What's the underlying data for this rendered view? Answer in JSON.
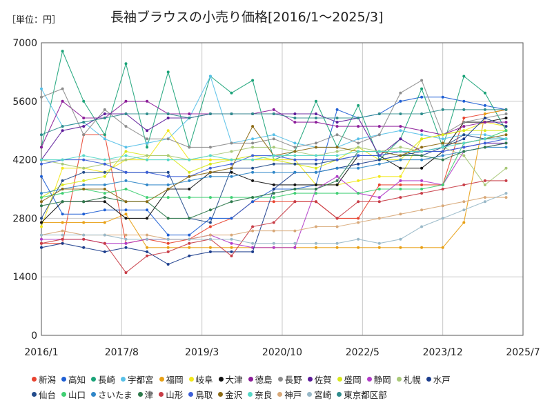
{
  "header": {
    "unit": "［単位：円］",
    "title": "長袖ブラウスの小売り価格[2016/1〜2025/3]"
  },
  "chart_data": {
    "type": "line",
    "title": "長袖ブラウスの小売り価格[2016/1〜2025/3]",
    "ylabel": "",
    "xlabel": "",
    "ylim": [
      0,
      7000
    ],
    "y_ticks": [
      0,
      1400,
      2800,
      4200,
      5600,
      7000
    ],
    "xlim": [
      "2016-01",
      "2025-07"
    ],
    "x_ticks": [
      "2016/1",
      "2017/8",
      "2019/3",
      "2020/10",
      "2022/5",
      "2023/12",
      "2025/7"
    ],
    "grid": true,
    "legend": "bottom",
    "x": [
      "2016-01",
      "2016-06",
      "2016-11",
      "2017-04",
      "2017-09",
      "2018-02",
      "2018-07",
      "2018-12",
      "2019-05",
      "2019-10",
      "2020-03",
      "2020-08",
      "2021-01",
      "2021-06",
      "2021-11",
      "2022-04",
      "2022-09",
      "2023-02",
      "2023-07",
      "2023-12",
      "2024-05",
      "2024-10",
      "2025-03"
    ],
    "series": [
      {
        "name": "新潟",
        "color": "#e8432f",
        "values": [
          2200,
          2200,
          4800,
          4800,
          2200,
          2300,
          2200,
          2300,
          2600,
          2800,
          3200,
          3200,
          3200,
          3200,
          2800,
          2800,
          3600,
          3600,
          3600,
          3600,
          5200,
          5300,
          5400
        ]
      },
      {
        "name": "高知",
        "color": "#1f5fd4",
        "values": [
          3800,
          2900,
          2900,
          3000,
          3000,
          3000,
          2400,
          2400,
          2800,
          2800,
          3200,
          3500,
          3500,
          3600,
          5400,
          5200,
          5300,
          5600,
          5700,
          5700,
          5600,
          5500,
          5400
        ]
      },
      {
        "name": "長崎",
        "color": "#1aa378",
        "values": [
          4500,
          6800,
          5600,
          4800,
          6500,
          4500,
          6300,
          4500,
          6200,
          5800,
          6100,
          4200,
          4400,
          5600,
          4500,
          5500,
          4200,
          4700,
          5900,
          4500,
          6200,
          5800,
          4900
        ]
      },
      {
        "name": "宇都宮",
        "color": "#57c0e8",
        "values": [
          5900,
          5000,
          5100,
          4700,
          4500,
          4600,
          4700,
          5200,
          6200,
          4600,
          4700,
          4800,
          4600,
          4500,
          4500,
          4700,
          4800,
          4900,
          4800,
          4700,
          4800,
          4800,
          4700
        ]
      },
      {
        "name": "福岡",
        "color": "#e8a014",
        "values": [
          2700,
          2700,
          2700,
          2700,
          2900,
          2100,
          2100,
          2100,
          2100,
          2100,
          2100,
          2100,
          2100,
          2100,
          2100,
          2100,
          2100,
          2100,
          2100,
          2100,
          2700,
          5300,
          5400
        ]
      },
      {
        "name": "岐阜",
        "color": "#f2e81a",
        "values": [
          2600,
          4000,
          4000,
          3900,
          4200,
          4200,
          4900,
          4200,
          4200,
          4200,
          4200,
          4200,
          4200,
          3600,
          3600,
          3700,
          3800,
          3800,
          4700,
          4800,
          4900,
          5100,
          5000
        ]
      },
      {
        "name": "大津",
        "color": "#111111",
        "values": [
          2700,
          3200,
          3200,
          3200,
          2800,
          2800,
          3500,
          3500,
          3900,
          3900,
          3700,
          3600,
          3600,
          3600,
          3600,
          4300,
          4300,
          4000,
          4000,
          4400,
          5100,
          5100,
          5200
        ]
      },
      {
        "name": "徳島",
        "color": "#8c1c99",
        "values": [
          4500,
          5600,
          5200,
          5200,
          5600,
          5600,
          5300,
          5300,
          5300,
          5300,
          5300,
          5400,
          5100,
          5100,
          5000,
          5000,
          5000,
          5000,
          4900,
          4800,
          5000,
          5100,
          5100
        ]
      },
      {
        "name": "長野",
        "color": "#8c8c8c",
        "values": [
          5700,
          5900,
          4800,
          5400,
          5000,
          4700,
          4700,
          4500,
          4500,
          4600,
          4600,
          4700,
          4500,
          4600,
          4800,
          4600,
          4800,
          5800,
          6100,
          4800,
          5100,
          5200,
          5300
        ]
      },
      {
        "name": "佐賀",
        "color": "#5b1a99",
        "values": [
          4200,
          4900,
          5000,
          5300,
          5300,
          4900,
          5200,
          5200,
          5300,
          5300,
          5300,
          5300,
          5300,
          5300,
          5100,
          5200,
          4300,
          4700,
          4400,
          4400,
          4500,
          4600,
          4600
        ]
      },
      {
        "name": "盛岡",
        "color": "#d8e81c",
        "values": [
          3300,
          3600,
          3700,
          3800,
          4400,
          4300,
          4300,
          3900,
          4100,
          4200,
          4300,
          4200,
          4100,
          4000,
          4200,
          4500,
          4200,
          4200,
          4700,
          4800,
          4900,
          4900,
          4900
        ]
      },
      {
        "name": "静岡",
        "color": "#b23cc8",
        "values": [
          2300,
          2300,
          2300,
          2200,
          2200,
          2300,
          2300,
          2300,
          2400,
          2200,
          2100,
          2100,
          2100,
          3500,
          3800,
          3400,
          3300,
          3700,
          3700,
          3600,
          4400,
          4500,
          4600
        ]
      },
      {
        "name": "札幌",
        "color": "#a8c878",
        "values": [
          4200,
          4100,
          4000,
          4100,
          4200,
          4300,
          4300,
          4200,
          4300,
          4400,
          4500,
          4500,
          4400,
          4300,
          4400,
          4500,
          4400,
          4500,
          4400,
          4500,
          4300,
          3600,
          4000
        ]
      },
      {
        "name": "水戸",
        "color": "#1a3c8c",
        "values": [
          2100,
          2200,
          2100,
          2000,
          2100,
          2000,
          1700,
          1900,
          2000,
          2000,
          2000,
          3500,
          3900,
          3900,
          4000,
          4100,
          4200,
          4300,
          4400,
          4500,
          4700,
          5200,
          5000
        ]
      },
      {
        "name": "仙台",
        "color": "#234c8c",
        "values": [
          2800,
          3700,
          3900,
          3900,
          3900,
          3900,
          3900,
          2800,
          2700,
          4000,
          4000,
          4100,
          4100,
          4100,
          4200,
          4300,
          4300,
          4400,
          4300,
          4500,
          4800,
          4700,
          4700
        ]
      },
      {
        "name": "山口",
        "color": "#3fcf72",
        "values": [
          3300,
          3400,
          3500,
          3400,
          3500,
          3300,
          3300,
          3300,
          3300,
          3300,
          3300,
          3300,
          3400,
          3400,
          3400,
          3400,
          3500,
          3500,
          3500,
          3600,
          4600,
          4700,
          4900
        ]
      },
      {
        "name": "さいたま",
        "color": "#2f86c8",
        "values": [
          3400,
          3500,
          3600,
          3600,
          3700,
          3600,
          3600,
          3700,
          3800,
          3800,
          3900,
          3900,
          3900,
          3900,
          4000,
          4000,
          4100,
          4200,
          4200,
          4300,
          4400,
          4500,
          4500
        ]
      },
      {
        "name": "津",
        "color": "#2e7a4c",
        "values": [
          3100,
          3200,
          3200,
          3300,
          3200,
          3200,
          2800,
          2800,
          3000,
          3200,
          3300,
          3400,
          3500,
          3500,
          3700,
          4400,
          4400,
          4300,
          4300,
          4200,
          4400,
          4500,
          4600
        ]
      },
      {
        "name": "山形",
        "color": "#c83c46",
        "values": [
          2200,
          2300,
          2300,
          2200,
          1500,
          1900,
          2000,
          2200,
          2300,
          1900,
          2600,
          2700,
          3200,
          3200,
          2800,
          3200,
          3200,
          3300,
          3400,
          3500,
          3600,
          3700,
          3700
        ]
      },
      {
        "name": "鳥取",
        "color": "#3c5fd8",
        "values": [
          4100,
          4200,
          4200,
          4100,
          3900,
          3900,
          3800,
          3800,
          4000,
          4100,
          4300,
          4300,
          4200,
          4200,
          4200,
          4300,
          4300,
          4400,
          4400,
          4400,
          4500,
          4600,
          4700
        ]
      },
      {
        "name": "金沢",
        "color": "#8c6a14",
        "values": [
          3200,
          3500,
          3500,
          3500,
          3200,
          3200,
          3500,
          3800,
          3900,
          4000,
          5000,
          4300,
          4400,
          4500,
          4500,
          4400,
          4400,
          4300,
          4500,
          4600,
          4600,
          4700,
          4800
        ]
      },
      {
        "name": "奈良",
        "color": "#57d8c8",
        "values": [
          4200,
          4200,
          4300,
          4200,
          4300,
          4200,
          4200,
          4200,
          4300,
          4200,
          4200,
          4300,
          4300,
          4300,
          4300,
          4400,
          4400,
          4400,
          4400,
          4500,
          4600,
          4700,
          4700
        ]
      },
      {
        "name": "神戸",
        "color": "#d8a878",
        "values": [
          2400,
          2500,
          2400,
          2400,
          2400,
          2400,
          2300,
          2300,
          2400,
          2400,
          2500,
          2500,
          2500,
          2600,
          2600,
          2700,
          2800,
          2900,
          3000,
          3100,
          3200,
          3300,
          3300
        ]
      },
      {
        "name": "宮崎",
        "color": "#98b8c8",
        "values": [
          2400,
          2400,
          2400,
          2400,
          2300,
          2300,
          2300,
          2300,
          2300,
          2300,
          2200,
          2200,
          2200,
          2200,
          2200,
          2300,
          2200,
          2300,
          2600,
          2800,
          3000,
          3200,
          3400
        ]
      },
      {
        "name": "東京都区部",
        "color": "#2e8c8c",
        "values": [
          4800,
          5000,
          5100,
          5200,
          5300,
          5300,
          5300,
          5200,
          5300,
          5300,
          5300,
          5300,
          5200,
          5200,
          5200,
          5200,
          5300,
          5300,
          5300,
          5400,
          5400,
          5400,
          5400
        ]
      }
    ]
  }
}
